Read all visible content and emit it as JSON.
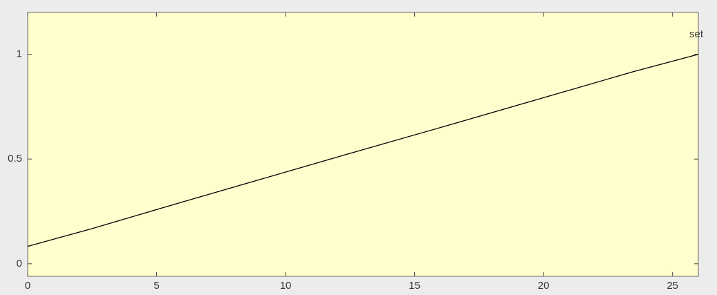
{
  "chart_data": {
    "type": "line",
    "annotation": "set",
    "x": [
      0,
      2.5,
      6,
      9.5,
      13,
      16.5,
      20,
      23.5,
      26
    ],
    "series": [
      {
        "color": "#000000",
        "values": [
          0.083,
          0.168,
          0.295,
          0.42,
          0.545,
          0.668,
          0.793,
          0.918,
          1.0
        ]
      }
    ],
    "xlim": [
      0,
      26
    ],
    "xticks": [
      0,
      5,
      10,
      15,
      20,
      25
    ],
    "ylim": [
      -0.06,
      1.2
    ],
    "yticks": [
      0,
      0.5,
      1
    ],
    "background": "#fffecc",
    "grid": false
  }
}
